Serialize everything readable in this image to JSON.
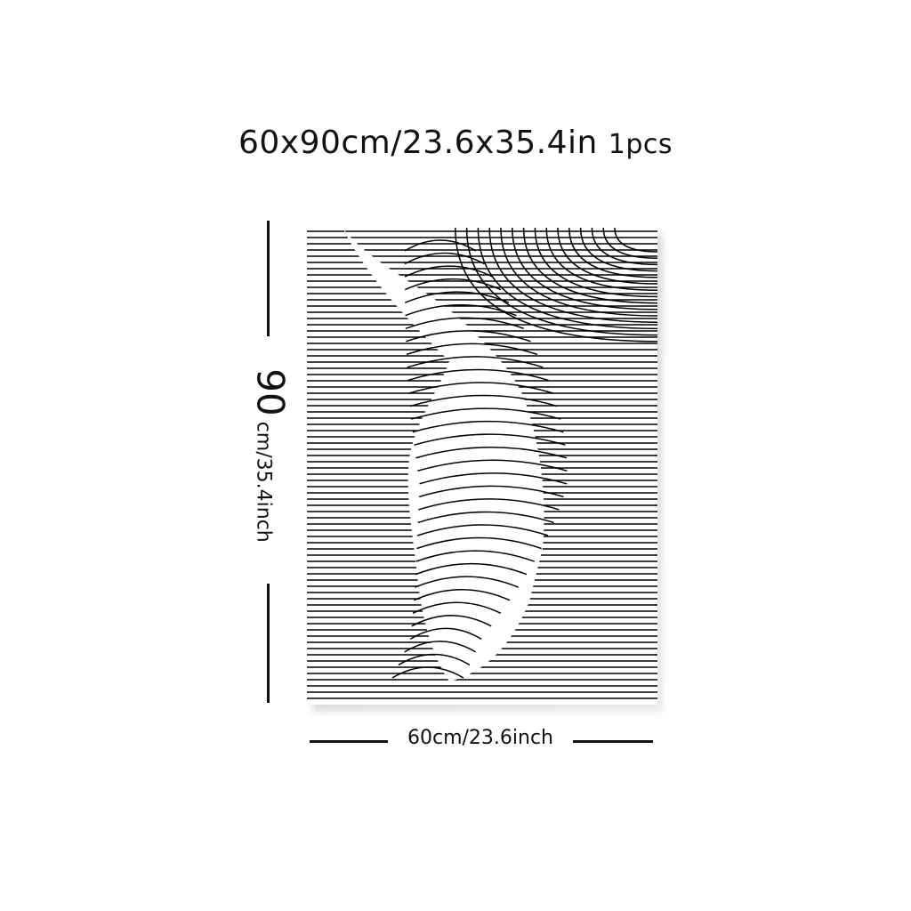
{
  "title": {
    "size_text": "60x90cm/23.6x35.4in",
    "quantity": "1pcs"
  },
  "dimensions": {
    "height_value": "90",
    "height_unit": "cm/35.4inch",
    "width_label": "60cm/23.6inch"
  },
  "artwork": {
    "subject": "line-art-hand-pointing",
    "colors": {
      "line": "#000000",
      "background": "#ffffff"
    }
  }
}
